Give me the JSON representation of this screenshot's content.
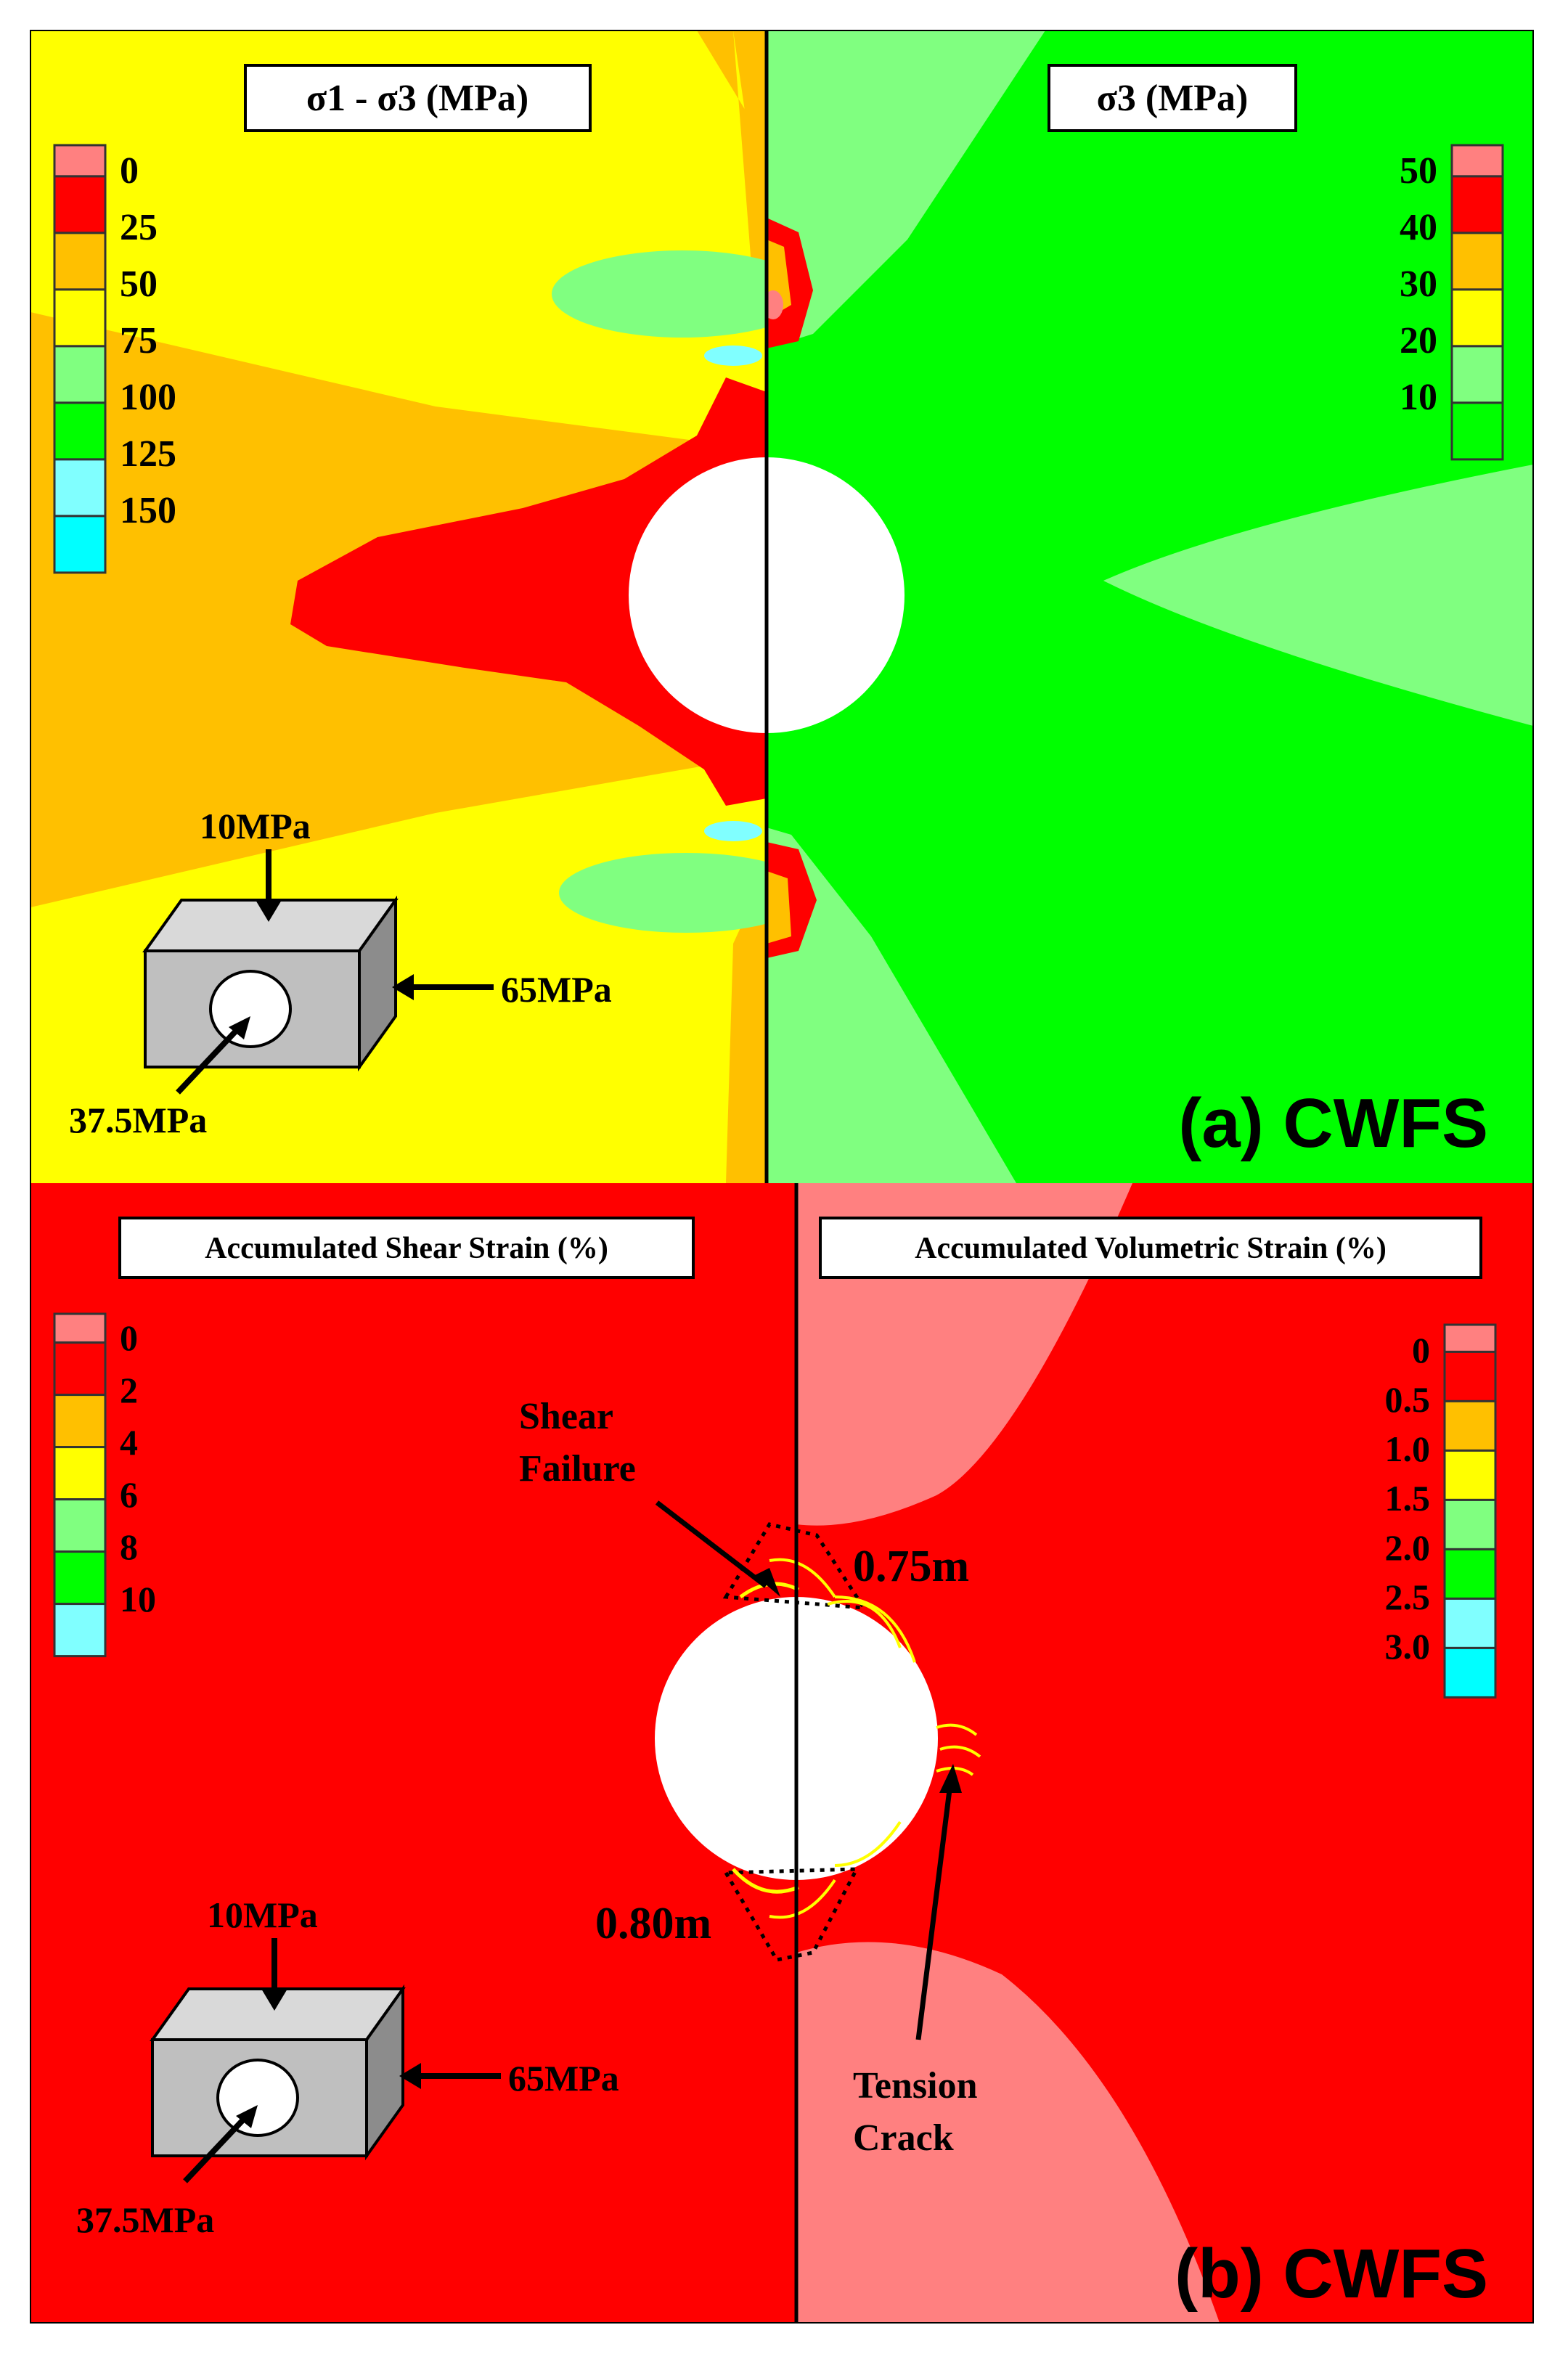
{
  "panel_a": {
    "caption": "(a) CWFS",
    "left_title": "σ1 - σ3 (MPa)",
    "right_title": "σ3 (MPa)",
    "left_legend": {
      "labels": [
        "0",
        "25",
        "50",
        "75",
        "100",
        "125",
        "150"
      ],
      "colors": [
        "#ff8080",
        "#ff0000",
        "#ffc000",
        "#ffff00",
        "#80ff80",
        "#00ff00",
        "#80ffff",
        "#00ffff"
      ]
    },
    "right_legend": {
      "labels": [
        "50",
        "40",
        "30",
        "20",
        "10"
      ],
      "colors": [
        "#ff8080",
        "#ff0000",
        "#ffc000",
        "#ffff00",
        "#80ff80",
        "#00ff00"
      ]
    },
    "load_diagram": {
      "top": "10MPa",
      "side": "65MPa",
      "axial": "37.5MPa"
    }
  },
  "panel_b": {
    "caption": "(b) CWFS",
    "left_title": "Accumulated Shear Strain (%)",
    "right_title": "Accumulated Volumetric Strain (%)",
    "left_legend": {
      "labels": [
        "0",
        "2",
        "4",
        "6",
        "8",
        "10"
      ],
      "colors": [
        "#ff8080",
        "#ff0000",
        "#ffc000",
        "#ffff00",
        "#80ff80",
        "#00ff00",
        "#80ffff"
      ]
    },
    "right_legend": {
      "labels": [
        "0",
        "0.5",
        "1.0",
        "1.5",
        "2.0",
        "2.5",
        "3.0"
      ],
      "colors": [
        "#ff8080",
        "#ff0000",
        "#ffc000",
        "#ffff00",
        "#80ff80",
        "#00ff00",
        "#80ffff",
        "#00ffff"
      ]
    },
    "annotations": {
      "shear_failure_line1": "Shear",
      "shear_failure_line2": "Failure",
      "depth_top": "0.75m",
      "depth_bottom": "0.80m",
      "tension_line1": "Tension",
      "tension_line2": "Crack"
    },
    "load_diagram": {
      "top": "10MPa",
      "side": "65MPa",
      "axial": "37.5MPa"
    }
  }
}
